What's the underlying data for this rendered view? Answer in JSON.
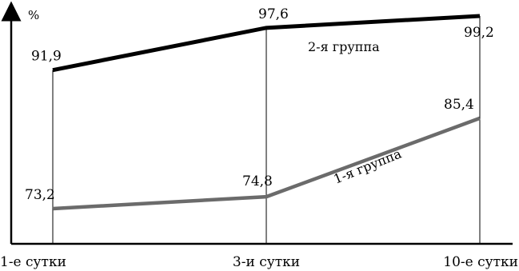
{
  "chart_data": {
    "type": "line",
    "ylabel": "%",
    "categories": [
      "1-е сутки",
      "3-и сутки",
      "10-е сутки"
    ],
    "series": [
      {
        "name": "2-я группа",
        "values": [
          91.9,
          97.6,
          99.2
        ],
        "labels": [
          "91,9",
          "97,6",
          "99,2"
        ],
        "color": "#000000"
      },
      {
        "name": "1-я группа",
        "values": [
          73.2,
          74.8,
          85.4
        ],
        "labels": [
          "73,2",
          "74,8",
          "85,4"
        ],
        "color": "#6b6b6b"
      }
    ],
    "grid": "vertical lines at categories",
    "legend": "inline labels on lines"
  }
}
